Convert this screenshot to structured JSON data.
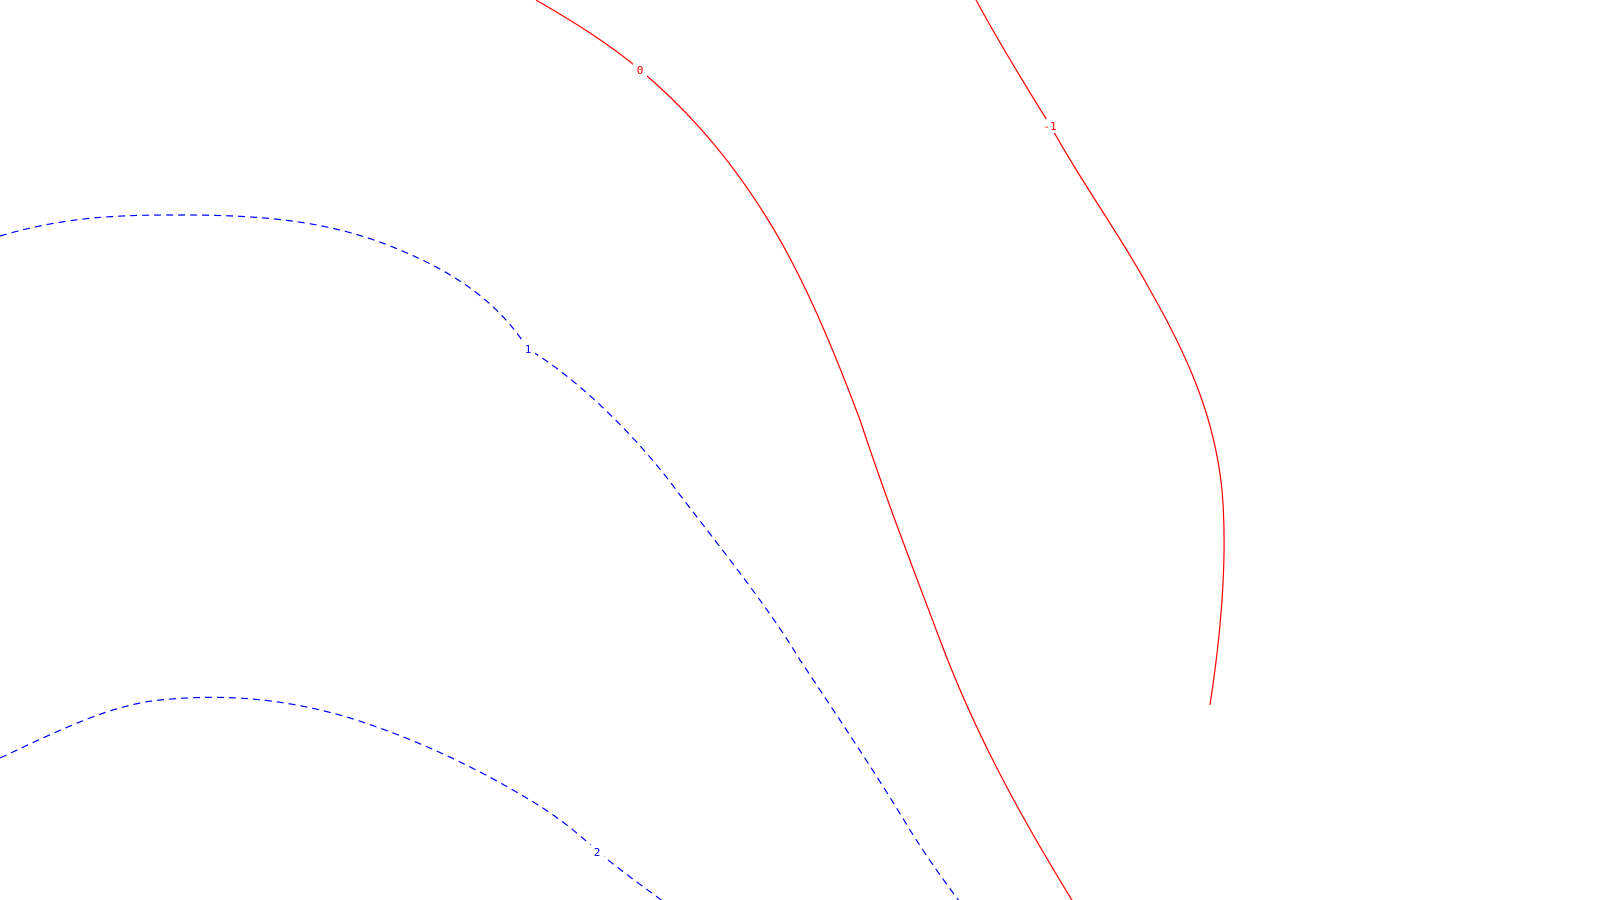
{
  "map": {
    "contours": [
      {
        "label": "0",
        "style": "solid",
        "color": "#ff0000"
      },
      {
        "label": "-1",
        "style": "solid",
        "color": "#ff0000"
      },
      {
        "label": "1",
        "style": "dashed",
        "color": "#0000ff"
      },
      {
        "label": "2",
        "style": "dashed",
        "color": "#0000ff"
      }
    ]
  }
}
